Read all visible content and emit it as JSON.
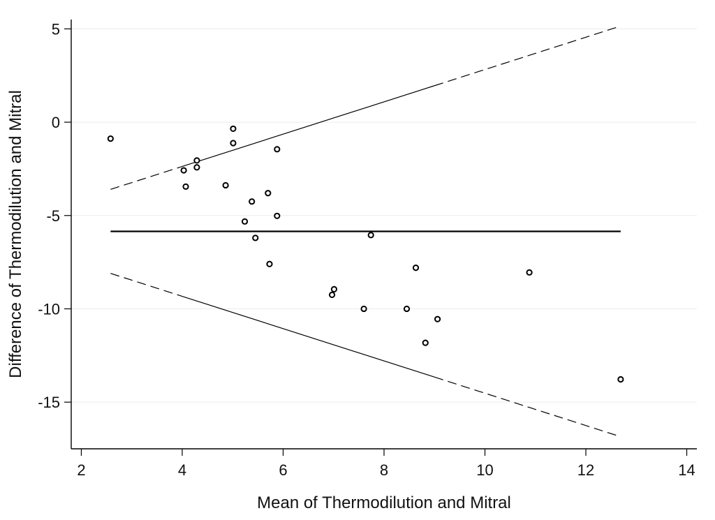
{
  "chart_data": {
    "type": "scatter",
    "title": "",
    "xlabel": "Mean of Thermodilution and Mitral",
    "ylabel": "Difference of Thermodilution and Mitral",
    "xlim": [
      1.8,
      14.2
    ],
    "ylim": [
      -17.5,
      5.5
    ],
    "xticks": [
      2,
      4,
      6,
      8,
      10,
      12,
      14
    ],
    "yticks": [
      5,
      0,
      -5,
      -10,
      -15
    ],
    "grid": true,
    "legend": "none",
    "points": [
      {
        "x": 2.58,
        "y": -0.88
      },
      {
        "x": 4.03,
        "y": -2.58
      },
      {
        "x": 4.07,
        "y": -3.45
      },
      {
        "x": 4.29,
        "y": -2.05
      },
      {
        "x": 4.29,
        "y": -2.42
      },
      {
        "x": 4.86,
        "y": -3.38
      },
      {
        "x": 5.01,
        "y": -0.35
      },
      {
        "x": 5.01,
        "y": -1.12
      },
      {
        "x": 5.24,
        "y": -5.32
      },
      {
        "x": 5.38,
        "y": -4.25
      },
      {
        "x": 5.45,
        "y": -6.2
      },
      {
        "x": 5.7,
        "y": -3.8
      },
      {
        "x": 5.73,
        "y": -7.6
      },
      {
        "x": 5.88,
        "y": -1.45
      },
      {
        "x": 5.88,
        "y": -5.02
      },
      {
        "x": 6.97,
        "y": -9.25
      },
      {
        "x": 7.01,
        "y": -8.95
      },
      {
        "x": 7.6,
        "y": -10.0
      },
      {
        "x": 7.74,
        "y": -6.05
      },
      {
        "x": 8.45,
        "y": -10.0
      },
      {
        "x": 8.63,
        "y": -7.8
      },
      {
        "x": 8.82,
        "y": -11.82
      },
      {
        "x": 9.06,
        "y": -10.55
      },
      {
        "x": 10.88,
        "y": -8.05
      },
      {
        "x": 12.69,
        "y": -13.78
      }
    ],
    "mean_difference": {
      "x": [
        2.58,
        12.69
      ],
      "y": -5.85
    },
    "upper_limit": {
      "x": [
        2.58,
        12.69
      ],
      "y": [
        -3.6,
        5.15
      ]
    },
    "lower_limit": {
      "x": [
        2.58,
        12.69
      ],
      "y": [
        -8.1,
        -16.85
      ]
    },
    "solid_segment_x": [
      4.0,
      9.0
    ]
  }
}
